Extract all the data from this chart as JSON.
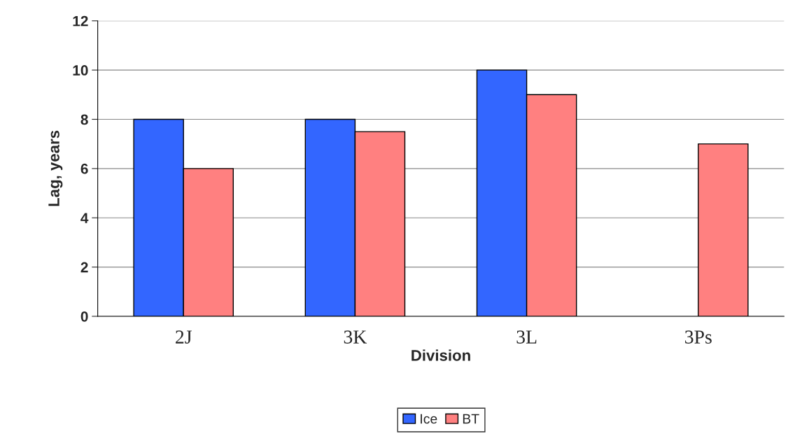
{
  "chart_data": {
    "type": "bar",
    "xlabel": "Division",
    "ylabel": "Lag, years",
    "categories": [
      "2J",
      "3K",
      "3L",
      "3Ps"
    ],
    "series": [
      {
        "name": "Ice",
        "color": "#3366ff",
        "values": [
          8,
          8,
          10,
          null
        ]
      },
      {
        "name": "BT",
        "color": "#ff8080",
        "values": [
          6,
          7.5,
          9,
          7
        ]
      }
    ],
    "ylim": [
      0,
      12
    ],
    "yticks": [
      0,
      2,
      4,
      6,
      8,
      10,
      12
    ],
    "grid": "y",
    "legend": "bottom"
  }
}
